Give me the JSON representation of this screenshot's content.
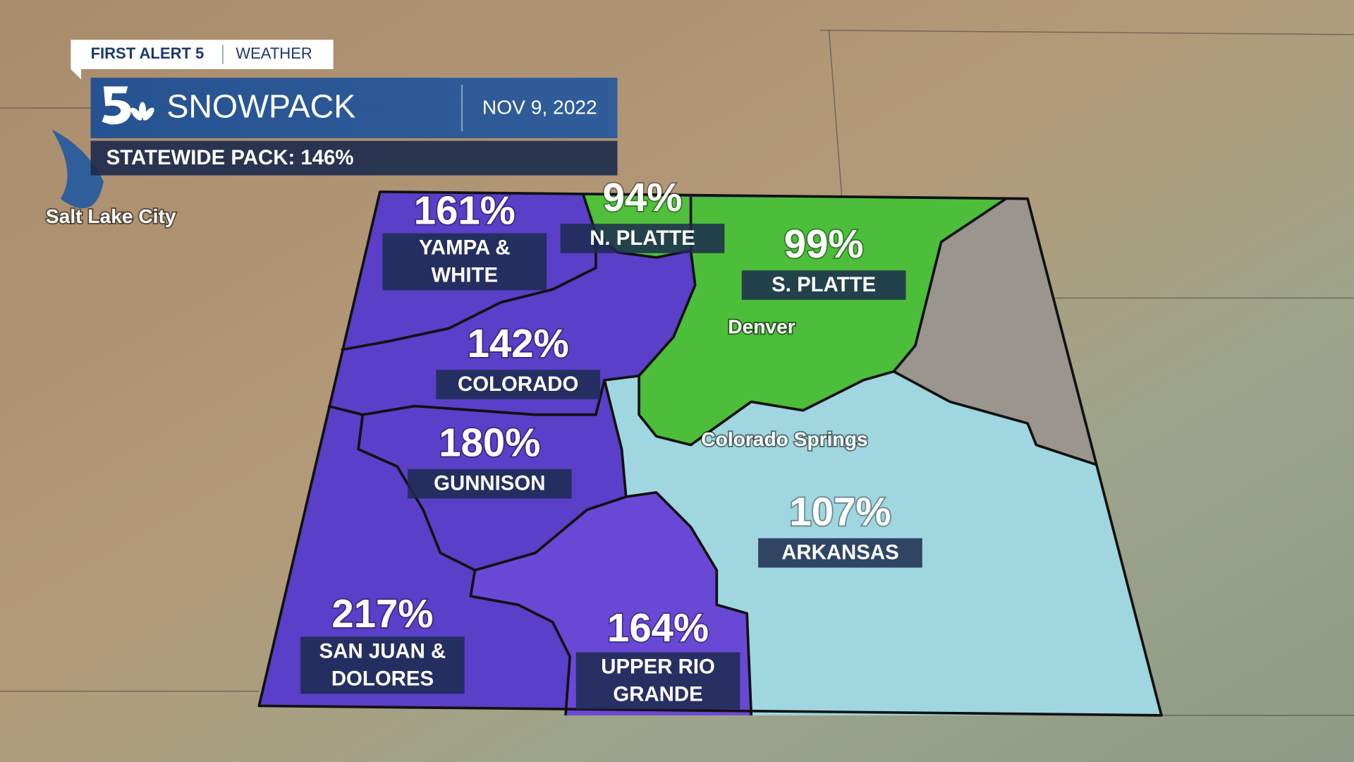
{
  "header": {
    "brand": "FIRST ALERT 5",
    "section": "WEATHER",
    "title": "SNOWPACK",
    "date": "NOV 9, 2022",
    "statewide": "STATEWIDE PACK: 146%"
  },
  "cities": [
    "Salt Lake City",
    "Denver",
    "Colorado Springs"
  ],
  "basins": [
    {
      "percent": "161%",
      "name": [
        "YAMPA &",
        "WHITE"
      ]
    },
    {
      "percent": "94%",
      "name": [
        "N. PLATTE"
      ]
    },
    {
      "percent": "99%",
      "name": [
        "S. PLATTE"
      ]
    },
    {
      "percent": "142%",
      "name": [
        "COLORADO"
      ]
    },
    {
      "percent": "180%",
      "name": [
        "GUNNISON"
      ]
    },
    {
      "percent": "107%",
      "name": [
        "ARKANSAS"
      ]
    },
    {
      "percent": "217%",
      "name": [
        "SAN JUAN &",
        "DOLORES"
      ]
    },
    {
      "percent": "164%",
      "name": [
        "UPPER RIO",
        "GRANDE"
      ]
    }
  ]
}
